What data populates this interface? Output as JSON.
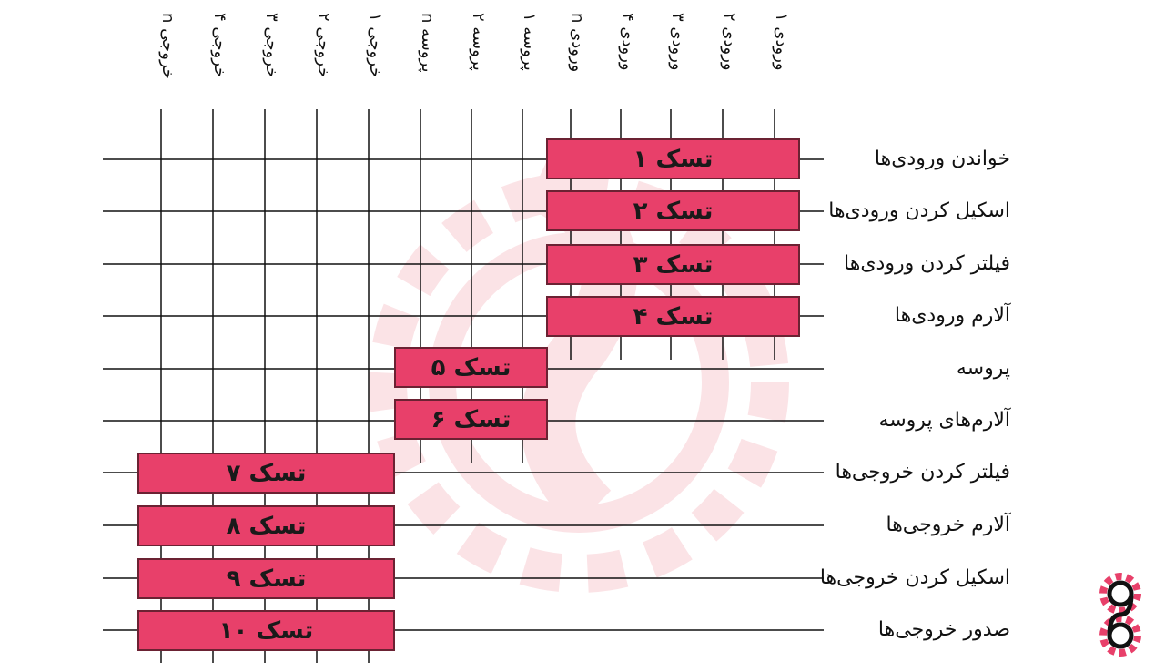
{
  "columns": {
    "inputs": [
      "ورودی ۱",
      "ورودی ۲",
      "ورودی ۳",
      "ورودی ۴",
      "ورودی n"
    ],
    "processes": [
      "پروسه ۱",
      "پروسه ۲",
      "پروسه n"
    ],
    "outputs": [
      "خروجی ۱",
      "خروجی ۲",
      "خروجی ۳",
      "خروجی ۴",
      "خروجی n"
    ]
  },
  "rows": [
    "خواندن ورودی‌ها",
    "اسکیل کردن ورودی‌ها",
    "فیلتر کردن ورودی‌ها",
    "آلارم ورودی‌ها",
    "پروسه",
    "آلارم‌های پروسه",
    "فیلتر کردن خروجی‌ها",
    "آلارم خروجی‌ها",
    "اسکیل کردن خروجی‌ها",
    "صدور خروجی‌ها"
  ],
  "tasks": [
    "تسک ۱",
    "تسک ۲",
    "تسک ۳",
    "تسک ۴",
    "تسک ۵",
    "تسک ۶",
    "تسک ۷",
    "تسک ۸",
    "تسک ۹",
    "تسک ۱۰"
  ],
  "colors": {
    "task_fill": "#e8406a",
    "task_border": "#6b2233",
    "line": "#111111",
    "watermark": "#fbe3e6"
  }
}
